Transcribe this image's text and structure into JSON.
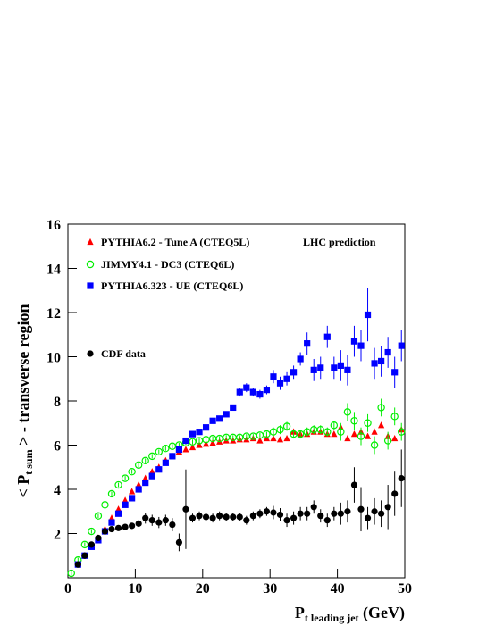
{
  "chart_data": {
    "type": "scatter",
    "y_label": [
      "< P",
      "t sum",
      " > - transverse region"
    ],
    "x_label": [
      "P",
      "t leading jet",
      " (GeV)"
    ],
    "annotation": "LHC prediction",
    "xlim": [
      0,
      50
    ],
    "ylim": [
      0,
      16
    ],
    "xticks": [
      0,
      10,
      20,
      30,
      40,
      50
    ],
    "yticks": [
      2,
      4,
      6,
      8,
      10,
      12,
      14,
      16
    ],
    "x": [
      0.5,
      1.5,
      2.5,
      3.5,
      4.5,
      5.5,
      6.5,
      7.5,
      8.5,
      9.5,
      10.5,
      11.5,
      12.5,
      13.5,
      14.5,
      15.5,
      16.5,
      17.5,
      18.5,
      19.5,
      20.5,
      21.5,
      22.5,
      23.5,
      24.5,
      25.5,
      26.5,
      27.5,
      28.5,
      29.5,
      30.5,
      31.5,
      32.5,
      33.5,
      34.5,
      35.5,
      36.5,
      37.5,
      38.5,
      39.5,
      40.5,
      41.5,
      42.5,
      43.5,
      44.5,
      45.5,
      46.5,
      47.5,
      48.5,
      49.5
    ],
    "series": [
      {
        "name": "PYTHIA6.2 - Tune A (CTEQ5L)",
        "color": "#ff0000",
        "marker": "triangle",
        "values": [
          null,
          0.6,
          1.0,
          1.4,
          1.8,
          2.2,
          2.7,
          3.1,
          3.5,
          3.9,
          4.2,
          4.5,
          4.8,
          5.0,
          5.3,
          5.5,
          5.7,
          5.8,
          5.9,
          6.0,
          6.05,
          6.1,
          6.15,
          6.2,
          6.2,
          6.25,
          6.25,
          6.3,
          6.2,
          6.3,
          6.3,
          6.25,
          6.3,
          6.6,
          6.5,
          6.5,
          6.6,
          6.6,
          6.5,
          6.5,
          6.8,
          6.3,
          6.5,
          6.6,
          6.4,
          6.6,
          6.9,
          6.4,
          6.3,
          6.7
        ]
      },
      {
        "name": "JIMMY4.1 - DC3 (CTEQ6L)",
        "color": "#00ee00",
        "marker": "open-circle",
        "values": [
          0.2,
          0.8,
          1.5,
          2.1,
          2.8,
          3.3,
          3.8,
          4.2,
          4.5,
          4.8,
          5.1,
          5.3,
          5.5,
          5.7,
          5.85,
          5.95,
          6.0,
          6.1,
          6.15,
          6.2,
          6.25,
          6.3,
          6.3,
          6.35,
          6.35,
          6.35,
          6.4,
          6.4,
          6.45,
          6.5,
          6.6,
          6.7,
          6.85,
          6.5,
          6.5,
          6.6,
          6.7,
          6.7,
          6.6,
          6.9,
          6.6,
          7.5,
          7.1,
          6.4,
          7.0,
          6.0,
          7.7,
          6.2,
          7.3,
          6.6
        ],
        "errors": [
          0.1,
          0.1,
          0.1,
          0.1,
          0.1,
          0.1,
          0.1,
          0.1,
          0.1,
          0.1,
          0.1,
          0.1,
          0.1,
          0.1,
          0.1,
          0.1,
          0.1,
          0.1,
          0.1,
          0.1,
          0.1,
          0.1,
          0.1,
          0.1,
          0.1,
          0.1,
          0.1,
          0.1,
          0.1,
          0.1,
          0.2,
          0.2,
          0.2,
          0.2,
          0.2,
          0.2,
          0.2,
          0.2,
          0.2,
          0.2,
          0.4,
          0.4,
          0.4,
          0.4,
          0.4,
          0.4,
          0.4,
          0.4,
          0.4,
          0.4
        ]
      },
      {
        "name": "PYTHIA6.323 - UE (CTEQ6L)",
        "color": "#0000ff",
        "marker": "square",
        "values": [
          null,
          0.6,
          1.0,
          1.4,
          1.7,
          2.1,
          2.5,
          2.9,
          3.3,
          3.6,
          4.0,
          4.3,
          4.6,
          4.9,
          5.2,
          5.5,
          5.8,
          6.2,
          6.5,
          6.6,
          6.8,
          7.1,
          7.2,
          7.4,
          7.7,
          8.4,
          8.6,
          8.4,
          8.3,
          8.5,
          9.1,
          8.8,
          9.0,
          9.3,
          9.9,
          10.6,
          9.4,
          9.5,
          10.9,
          9.5,
          9.6,
          9.4,
          10.7,
          10.5,
          11.9,
          9.7,
          9.8,
          10.2,
          9.3,
          10.5
        ],
        "errors": [
          null,
          0.1,
          0.1,
          0.1,
          0.1,
          0.1,
          0.1,
          0.1,
          0.1,
          0.1,
          0.1,
          0.1,
          0.1,
          0.1,
          0.1,
          0.1,
          0.1,
          0.1,
          0.1,
          0.1,
          0.1,
          0.1,
          0.1,
          0.1,
          0.1,
          0.2,
          0.2,
          0.2,
          0.2,
          0.2,
          0.3,
          0.3,
          0.3,
          0.3,
          0.3,
          0.5,
          0.5,
          0.5,
          0.5,
          0.5,
          0.7,
          0.7,
          0.7,
          0.7,
          1.2,
          0.7,
          0.7,
          0.7,
          0.7,
          0.7
        ]
      },
      {
        "name": "CDF data",
        "color": "#000000",
        "marker": "circle",
        "values": [
          null,
          0.6,
          1.0,
          1.5,
          1.8,
          2.1,
          2.2,
          2.25,
          2.3,
          2.35,
          2.45,
          2.7,
          2.6,
          2.5,
          2.6,
          2.4,
          1.6,
          3.1,
          2.7,
          2.8,
          2.75,
          2.7,
          2.8,
          2.75,
          2.75,
          2.75,
          2.6,
          2.8,
          2.9,
          3.0,
          2.95,
          2.85,
          2.6,
          2.7,
          2.9,
          2.9,
          3.2,
          2.8,
          2.6,
          2.9,
          2.9,
          3.0,
          4.2,
          3.1,
          2.7,
          3.0,
          2.9,
          3.2,
          3.8,
          4.5
        ],
        "errors": [
          null,
          0.1,
          0.1,
          0.1,
          0.1,
          0.1,
          0.1,
          0.1,
          0.1,
          0.1,
          0.15,
          0.25,
          0.25,
          0.25,
          0.25,
          0.3,
          0.4,
          1.8,
          0.2,
          0.2,
          0.2,
          0.2,
          0.2,
          0.2,
          0.2,
          0.2,
          0.2,
          0.2,
          0.2,
          0.2,
          0.3,
          0.3,
          0.3,
          0.3,
          0.3,
          0.3,
          0.3,
          0.3,
          0.3,
          0.3,
          0.5,
          0.5,
          0.8,
          1.0,
          0.5,
          0.6,
          0.6,
          1.0,
          1.0,
          1.3
        ]
      }
    ]
  }
}
